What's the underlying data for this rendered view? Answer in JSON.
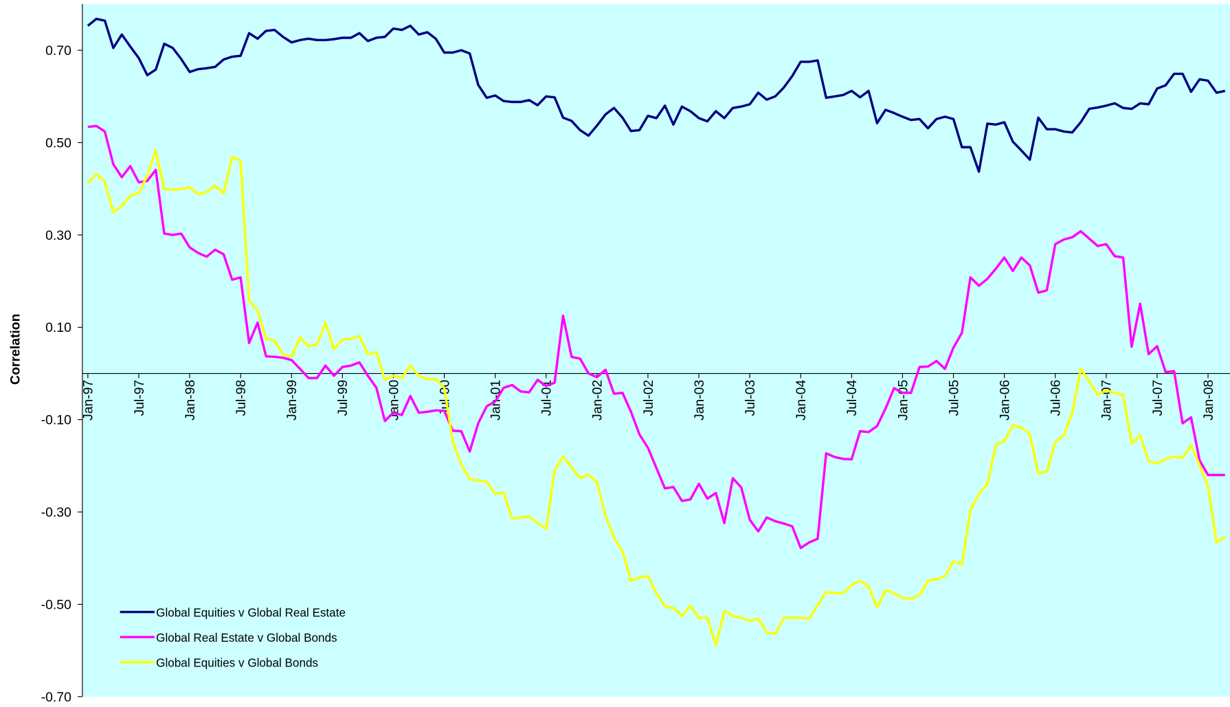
{
  "chart_data": {
    "type": "line",
    "y_label": "Correlation",
    "categories": [
      "Jan-97",
      null,
      null,
      null,
      null,
      null,
      "Jul-97",
      null,
      null,
      null,
      null,
      null,
      "Jan-98",
      null,
      null,
      null,
      null,
      null,
      "Jul-98",
      null,
      null,
      null,
      null,
      null,
      "Jan-99",
      null,
      null,
      null,
      null,
      null,
      "Jul-99",
      null,
      null,
      null,
      null,
      null,
      "Jan-00",
      null,
      null,
      null,
      null,
      null,
      "Jul-00",
      null,
      null,
      null,
      null,
      null,
      "Jan-01",
      null,
      null,
      null,
      null,
      null,
      "Jul-01",
      null,
      null,
      null,
      null,
      null,
      "Jan-02",
      null,
      null,
      null,
      null,
      null,
      "Jul-02",
      null,
      null,
      null,
      null,
      null,
      "Jan-03",
      null,
      null,
      null,
      null,
      null,
      "Jul-03",
      null,
      null,
      null,
      null,
      null,
      "Jan-04",
      null,
      null,
      null,
      null,
      null,
      "Jul-04",
      null,
      null,
      null,
      null,
      null,
      "Jan-05",
      null,
      null,
      null,
      null,
      null,
      "Jul-05",
      null,
      null,
      null,
      null,
      null,
      "Jan-06",
      null,
      null,
      null,
      null,
      null,
      "Jul-06",
      null,
      null,
      null,
      null,
      null,
      "Jan-07",
      null,
      null,
      null,
      null,
      null,
      "Jul-07",
      null,
      null,
      null,
      null,
      null,
      "Jan-08",
      null,
      null
    ],
    "series": [
      {
        "name": "Global Equities v Global Real Estate",
        "color": "#000080",
        "values": [
          0.753,
          0.768,
          0.764,
          0.705,
          0.734,
          0.708,
          0.683,
          0.646,
          0.658,
          0.714,
          0.705,
          0.681,
          0.653,
          0.659,
          0.661,
          0.664,
          0.68,
          0.686,
          0.688,
          0.737,
          0.725,
          0.742,
          0.744,
          0.729,
          0.717,
          0.722,
          0.725,
          0.722,
          0.722,
          0.724,
          0.727,
          0.727,
          0.737,
          0.72,
          0.727,
          0.729,
          0.747,
          0.744,
          0.753,
          0.734,
          0.739,
          0.725,
          0.695,
          0.695,
          0.7,
          0.693,
          0.625,
          0.597,
          0.602,
          0.59,
          0.588,
          0.588,
          0.592,
          0.581,
          0.6,
          0.598,
          0.554,
          0.547,
          0.527,
          0.515,
          0.537,
          0.561,
          0.575,
          0.554,
          0.525,
          0.527,
          0.558,
          0.553,
          0.58,
          0.539,
          0.578,
          0.568,
          0.553,
          0.546,
          0.568,
          0.553,
          0.575,
          0.578,
          0.583,
          0.608,
          0.593,
          0.6,
          0.619,
          0.644,
          0.675,
          0.675,
          0.678,
          0.597,
          0.6,
          0.603,
          0.612,
          0.598,
          0.612,
          0.542,
          0.571,
          0.564,
          0.556,
          0.549,
          0.551,
          0.531,
          0.551,
          0.556,
          0.551,
          0.49,
          0.49,
          0.437,
          0.541,
          0.539,
          0.544,
          0.502,
          0.483,
          0.463,
          0.554,
          0.529,
          0.529,
          0.524,
          0.522,
          0.544,
          0.573,
          0.576,
          0.58,
          0.585,
          0.575,
          0.573,
          0.585,
          0.583,
          0.617,
          0.624,
          0.649,
          0.649,
          0.61,
          0.637,
          0.634,
          0.608,
          0.612
        ]
      },
      {
        "name": "Global Real Estate v Global Bonds",
        "color": "#ff00ff",
        "values": [
          0.534,
          0.536,
          0.524,
          0.453,
          0.425,
          0.449,
          0.414,
          0.417,
          0.441,
          0.303,
          0.3,
          0.303,
          0.273,
          0.261,
          0.253,
          0.268,
          0.258,
          0.203,
          0.208,
          0.066,
          0.11,
          0.037,
          0.036,
          0.034,
          0.029,
          0.01,
          -0.01,
          -0.01,
          0.017,
          -0.005,
          0.014,
          0.017,
          0.024,
          -0.005,
          -0.031,
          -0.103,
          -0.085,
          -0.09,
          -0.049,
          -0.085,
          -0.083,
          -0.08,
          -0.081,
          -0.124,
          -0.125,
          -0.169,
          -0.108,
          -0.071,
          -0.061,
          -0.031,
          -0.025,
          -0.039,
          -0.041,
          -0.014,
          -0.027,
          -0.02,
          0.125,
          0.036,
          0.032,
          0.0,
          -0.008,
          0.008,
          -0.044,
          -0.042,
          -0.083,
          -0.132,
          -0.161,
          -0.205,
          -0.249,
          -0.246,
          -0.276,
          -0.273,
          -0.239,
          -0.271,
          -0.259,
          -0.324,
          -0.227,
          -0.247,
          -0.317,
          -0.342,
          -0.312,
          -0.32,
          -0.325,
          -0.331,
          -0.378,
          -0.366,
          -0.358,
          -0.173,
          -0.181,
          -0.185,
          -0.186,
          -0.125,
          -0.127,
          -0.114,
          -0.076,
          -0.032,
          -0.042,
          -0.042,
          0.014,
          0.015,
          0.027,
          0.01,
          0.056,
          0.088,
          0.208,
          0.19,
          0.205,
          0.227,
          0.251,
          0.222,
          0.251,
          0.234,
          0.175,
          0.18,
          0.28,
          0.29,
          0.295,
          0.308,
          0.292,
          0.276,
          0.28,
          0.254,
          0.251,
          0.058,
          0.151,
          0.042,
          0.059,
          0.003,
          0.005,
          -0.108,
          -0.095,
          -0.188,
          -0.22,
          -0.22,
          -0.22
        ]
      },
      {
        "name": "Global Equities v Global Bonds",
        "color": "#ffff00",
        "values": [
          0.412,
          0.432,
          0.415,
          0.349,
          0.363,
          0.385,
          0.39,
          0.429,
          0.483,
          0.4,
          0.397,
          0.4,
          0.403,
          0.388,
          0.393,
          0.407,
          0.39,
          0.469,
          0.461,
          0.158,
          0.137,
          0.076,
          0.071,
          0.041,
          0.037,
          0.078,
          0.059,
          0.063,
          0.11,
          0.053,
          0.073,
          0.075,
          0.081,
          0.042,
          0.046,
          -0.014,
          -0.005,
          -0.01,
          0.017,
          -0.005,
          -0.012,
          -0.012,
          -0.031,
          -0.147,
          -0.197,
          -0.229,
          -0.232,
          -0.234,
          -0.261,
          -0.258,
          -0.314,
          -0.312,
          -0.31,
          -0.324,
          -0.337,
          -0.21,
          -0.18,
          -0.203,
          -0.227,
          -0.219,
          -0.236,
          -0.308,
          -0.356,
          -0.385,
          -0.449,
          -0.442,
          -0.439,
          -0.476,
          -0.505,
          -0.508,
          -0.525,
          -0.503,
          -0.529,
          -0.529,
          -0.588,
          -0.515,
          -0.525,
          -0.529,
          -0.536,
          -0.531,
          -0.561,
          -0.564,
          -0.529,
          -0.529,
          -0.529,
          -0.531,
          -0.502,
          -0.473,
          -0.476,
          -0.476,
          -0.458,
          -0.449,
          -0.461,
          -0.507,
          -0.469,
          -0.476,
          -0.486,
          -0.488,
          -0.48,
          -0.449,
          -0.446,
          -0.439,
          -0.407,
          -0.414,
          -0.295,
          -0.261,
          -0.239,
          -0.154,
          -0.147,
          -0.112,
          -0.117,
          -0.131,
          -0.217,
          -0.212,
          -0.149,
          -0.134,
          -0.086,
          0.01,
          -0.017,
          -0.046,
          -0.037,
          -0.042,
          -0.047,
          -0.151,
          -0.134,
          -0.19,
          -0.195,
          -0.185,
          -0.18,
          -0.183,
          -0.156,
          -0.198,
          -0.244,
          -0.366,
          -0.354
        ]
      }
    ],
    "ylim": [
      -0.7,
      0.8
    ],
    "yticks": [
      {
        "value": -0.7,
        "label": "-0.70"
      },
      {
        "value": -0.5,
        "label": "-0.50"
      },
      {
        "value": -0.3,
        "label": "-0.30"
      },
      {
        "value": -0.1,
        "label": "-0.10"
      },
      {
        "value": 0.1,
        "label": "0.10"
      },
      {
        "value": 0.3,
        "label": "0.30"
      },
      {
        "value": 0.5,
        "label": "0.50"
      },
      {
        "value": 0.7,
        "label": "0.70"
      }
    ],
    "background": "#ccffff",
    "grid": false,
    "legend": "lower left"
  }
}
